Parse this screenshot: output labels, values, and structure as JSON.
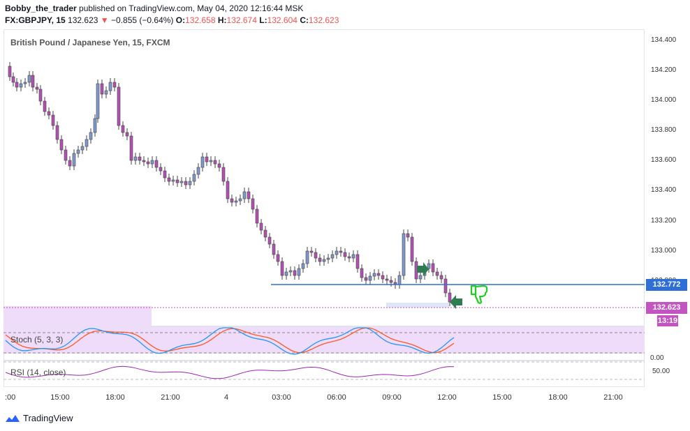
{
  "header": {
    "author": "Bobby_the_trader",
    "published_text": "published on TradingView.com, May 04, 2020 12:16:44 MSK",
    "symbol": "FX:GBPJPY, 15",
    "last": "132.623",
    "down_arrow": "▼",
    "change": "−0.855 (−0.64%)",
    "o_label": "O:",
    "o_value": "132.658",
    "h_label": "H:",
    "h_value": "132.674",
    "l_label": "L:",
    "l_value": "132.604",
    "c_label": "C:",
    "c_value": "132.623"
  },
  "chart": {
    "title": "British Pound / Japanese Yen, 15, FXCM",
    "price_axis": [
      "134.400",
      "134.200",
      "134.000",
      "133.800",
      "133.600",
      "133.400",
      "133.200",
      "133.000",
      "132.800"
    ],
    "time_axis": [
      ":00",
      "15:00",
      "18:00",
      "21:00",
      "4",
      "03:00",
      "06:00",
      "09:00",
      "12:00",
      "15:00",
      "18:00",
      "21:00"
    ],
    "level_line_tag": "132.772",
    "last_price_tag": "132.623",
    "countdown_tag": "13:19",
    "stoch_label": "Stoch (5, 3, 3)",
    "stoch_axis": [
      "0.00"
    ],
    "rsi_label": "RSI (14, close)",
    "rsi_axis": [
      "50.00"
    ],
    "colors": {
      "candle_bull": "#7f97c9",
      "candle_bear": "#b052b0",
      "level_line": "#2d6fd6",
      "last_price": "#c255c2",
      "stoch_k": "#2196f3",
      "stoch_d": "#ff5722",
      "rsi_line": "#9c27b0",
      "band_fill": "#efdcfa",
      "arrow_green": "#2e7d52",
      "thumb_green": "#22cc22"
    },
    "icons": [
      "arrow-right-icon",
      "arrow-left-icon",
      "thumbs-down-icon"
    ]
  },
  "footer": {
    "brand": "TradingView"
  }
}
